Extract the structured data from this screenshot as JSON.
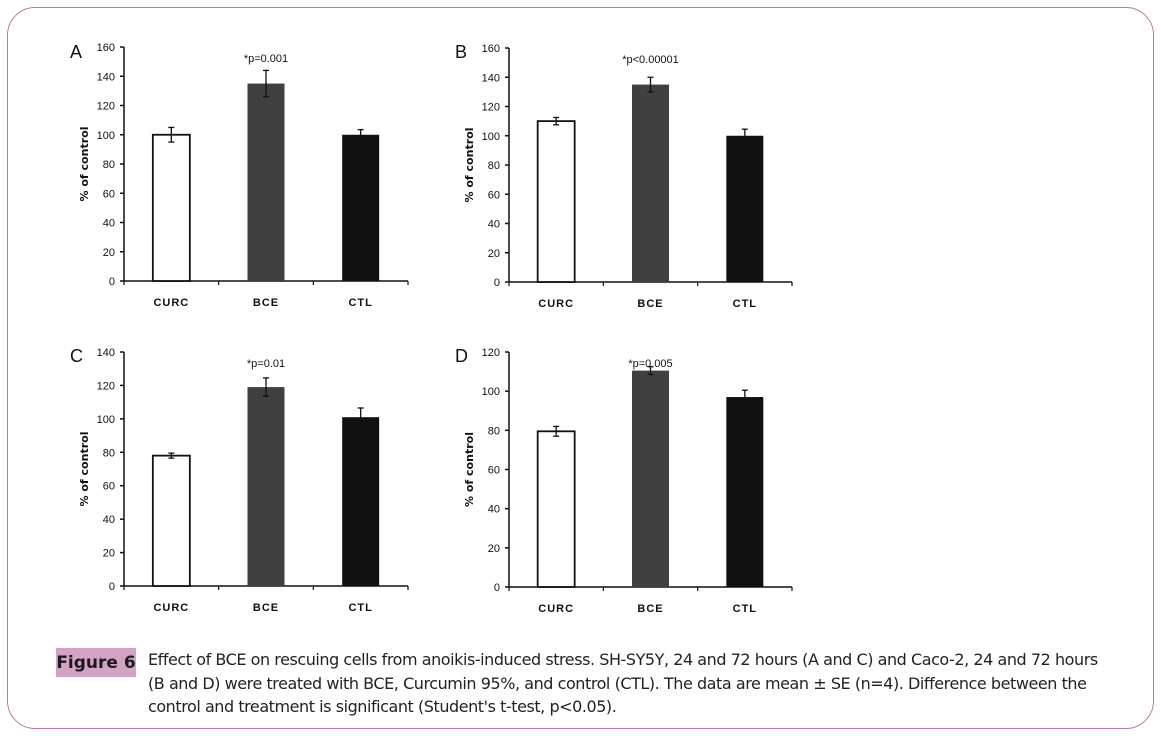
{
  "figure": {
    "label": "Figure 6",
    "caption": "Effect of BCE on rescuing cells from anoikis-induced stress. SH-SY5Y, 24 and 72 hours (A and C) and Caco-2, 24 and 72 hours (B and D) were treated with BCE, Curcumin 95%, and control (CTL). The data are mean ± SE (n=4). Difference between the control and treatment is significant (Student's t-test, p<0.05)."
  },
  "colors": {
    "frame": "#b978a8",
    "label_bg": "#d4a3c4",
    "bar_fills": [
      "#ffffff",
      "#404040",
      "#111111"
    ]
  },
  "chart_data": [
    {
      "type": "bar",
      "panel": "A",
      "title": "",
      "xlabel": "",
      "ylabel": "% of control",
      "categories": [
        "CURC",
        "BCE",
        "CTL"
      ],
      "values": [
        100,
        135,
        100
      ],
      "errors": [
        5,
        9,
        3.5
      ],
      "ylim": [
        0,
        160
      ],
      "yticks": [
        0,
        20,
        40,
        60,
        80,
        100,
        120,
        140,
        160
      ],
      "annotation": "*p=0.001",
      "annotation_category": "BCE",
      "grid": false,
      "legend": "none"
    },
    {
      "type": "bar",
      "panel": "B",
      "title": "",
      "xlabel": "",
      "ylabel": "% of control",
      "categories": [
        "CURC",
        "BCE",
        "CTL"
      ],
      "values": [
        110,
        135,
        100
      ],
      "errors": [
        2.5,
        5,
        4.5
      ],
      "ylim": [
        0,
        160
      ],
      "yticks": [
        0,
        20,
        40,
        60,
        80,
        100,
        120,
        140,
        160
      ],
      "annotation": "*p<0.00001",
      "annotation_category": "BCE",
      "grid": false,
      "legend": "none"
    },
    {
      "type": "bar",
      "panel": "C",
      "title": "",
      "xlabel": "",
      "ylabel": "% of control",
      "categories": [
        "CURC",
        "BCE",
        "CTL"
      ],
      "values": [
        78,
        119,
        101
      ],
      "errors": [
        1.5,
        5.5,
        5.5
      ],
      "ylim": [
        0,
        140
      ],
      "yticks": [
        0,
        20,
        40,
        60,
        80,
        100,
        120,
        140
      ],
      "annotation": "*p=0.01",
      "annotation_category": "BCE",
      "grid": false,
      "legend": "none"
    },
    {
      "type": "bar",
      "panel": "D",
      "title": "",
      "xlabel": "",
      "ylabel": "% of control",
      "categories": [
        "CURC",
        "BCE",
        "CTL"
      ],
      "values": [
        79.5,
        110.5,
        97
      ],
      "errors": [
        2.5,
        2,
        3.5
      ],
      "ylim": [
        0,
        120
      ],
      "yticks": [
        0,
        20,
        40,
        60,
        80,
        100,
        120
      ],
      "annotation": "*p=0.005",
      "annotation_category": "BCE",
      "grid": false,
      "legend": "none"
    }
  ]
}
